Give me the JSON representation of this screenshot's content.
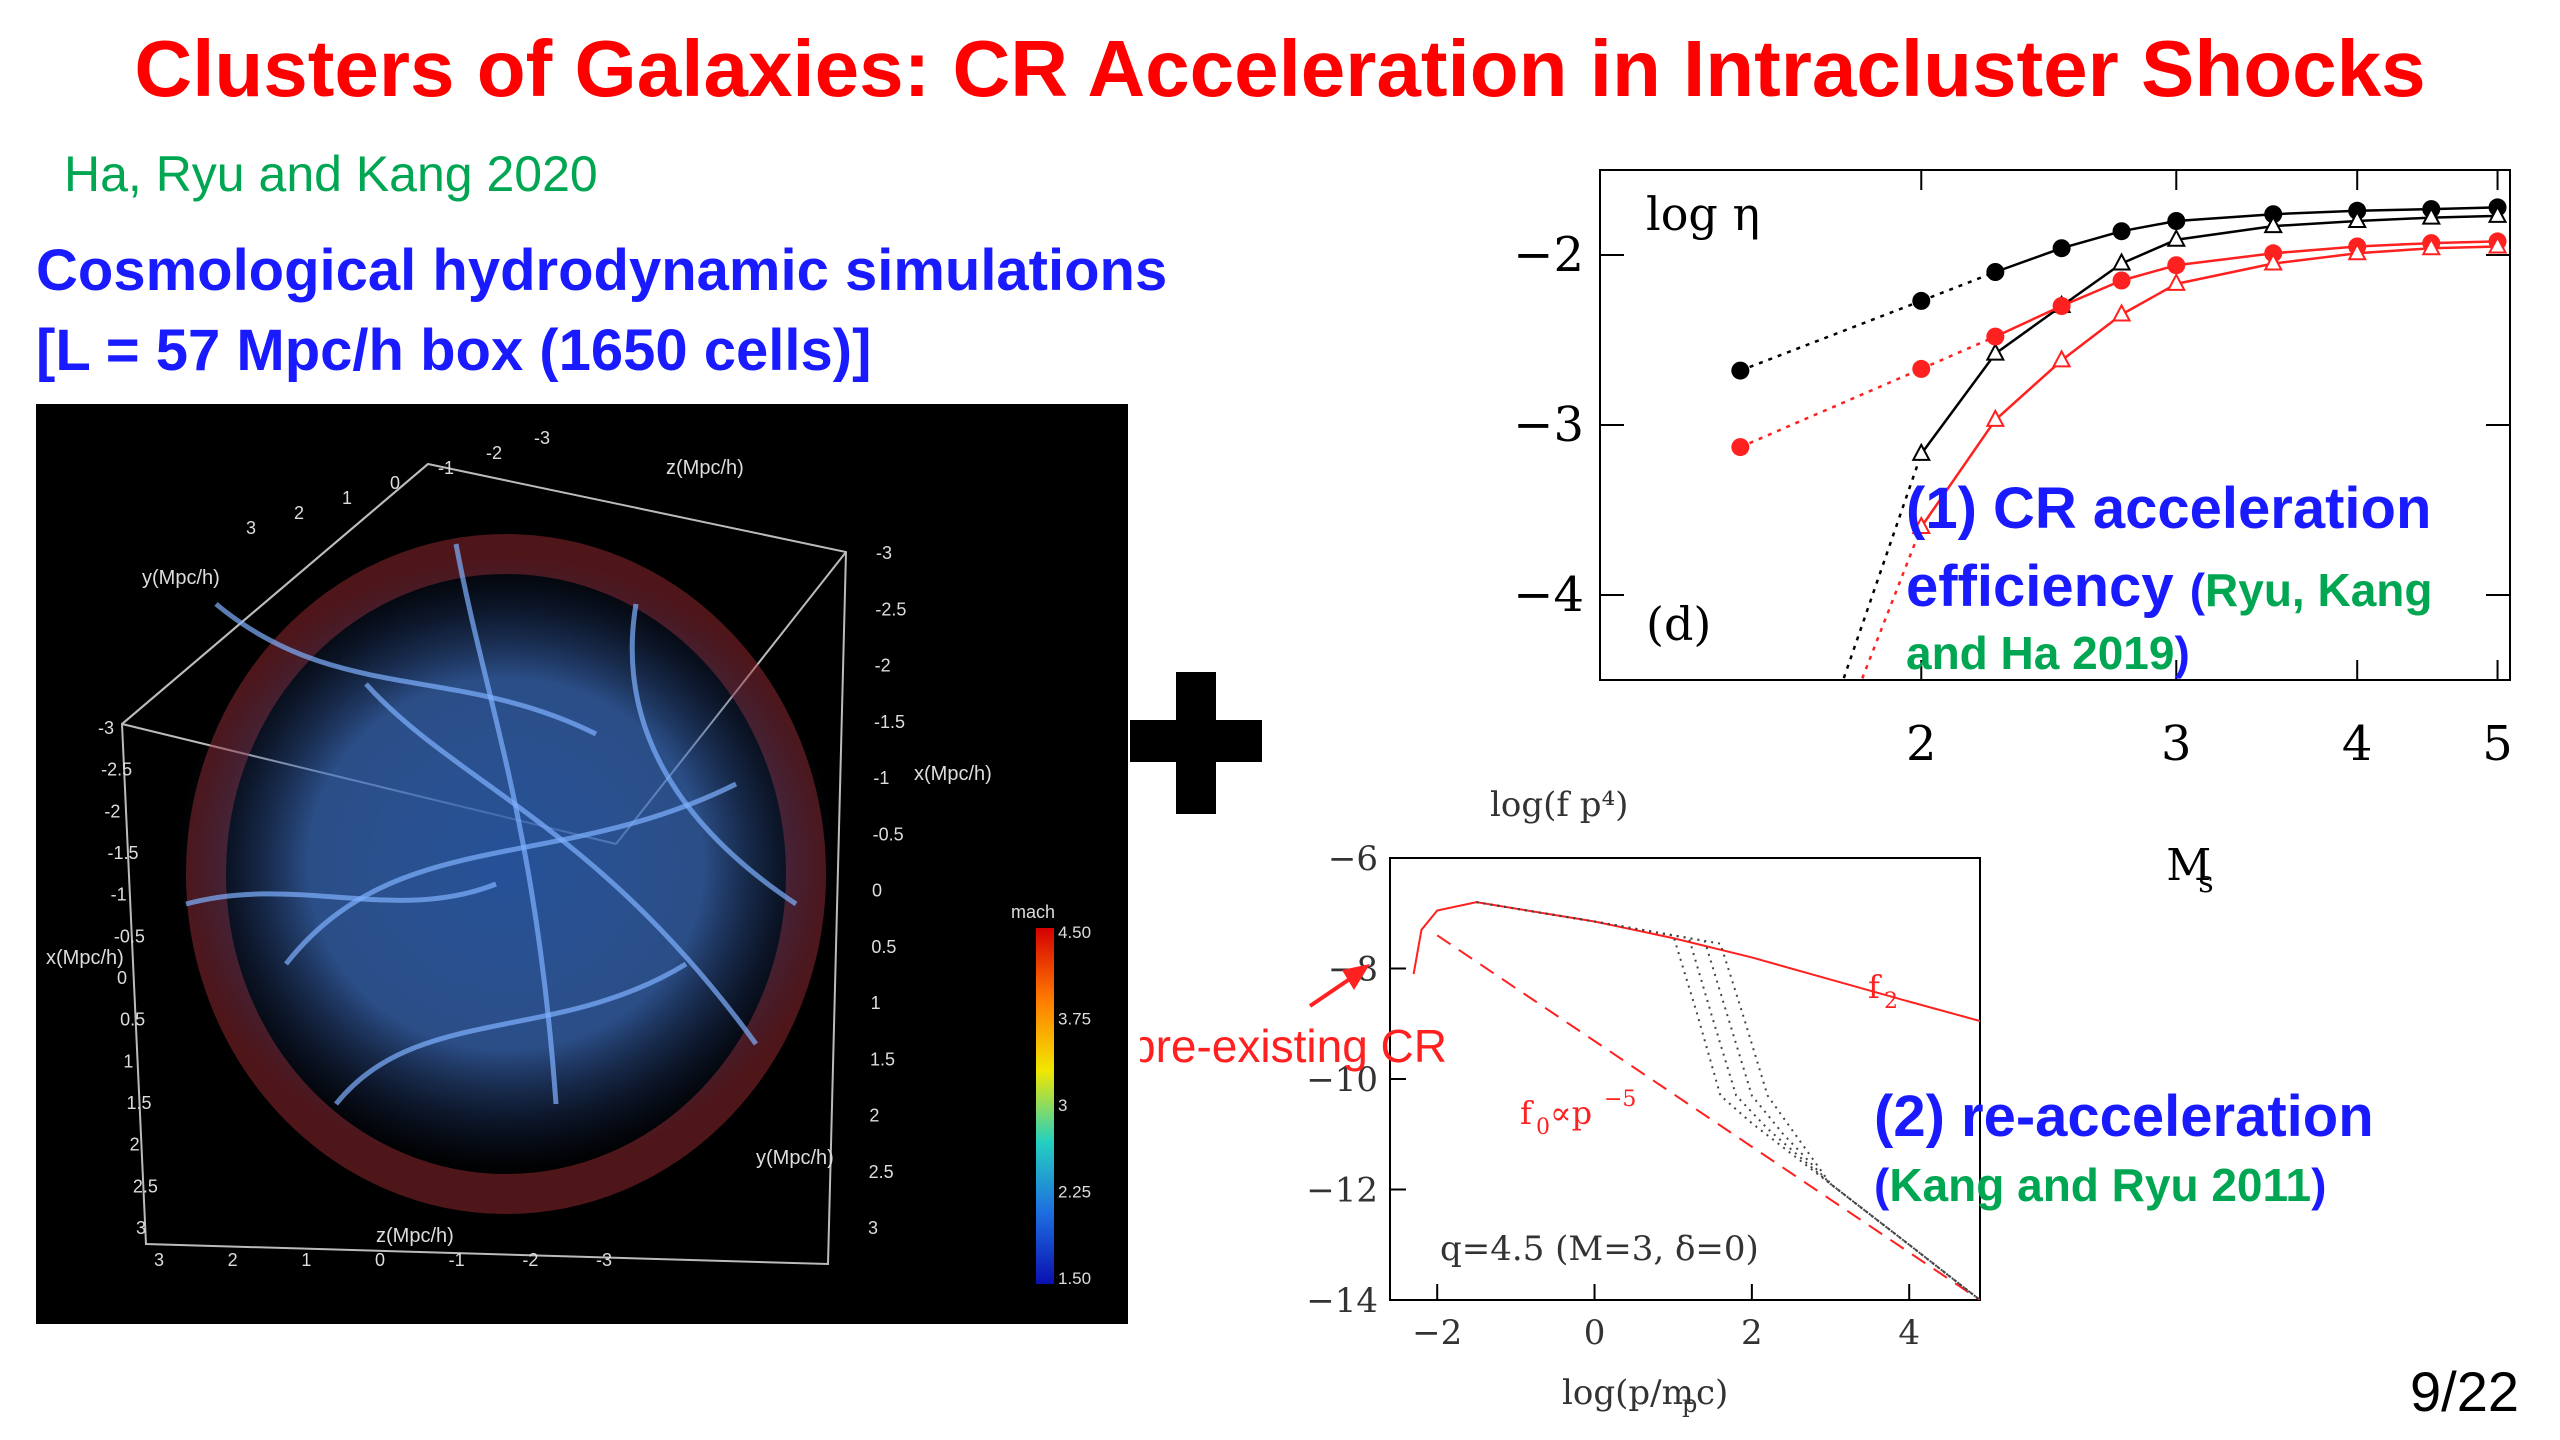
{
  "slide": {
    "title": "Clusters of Galaxies: CR Acceleration in Intracluster Shocks",
    "reference": "Ha, Ryu and Kang 2020",
    "sim_line1": "Cosmological hydrodynamic simulations",
    "sim_line2": "[L = 57 Mpc/h box (1650 cells)]",
    "page_number": "9/22"
  },
  "colors": {
    "title": "#ff0000",
    "reference": "#00a651",
    "heading": "#1a1aff",
    "red_series": "#ff2020"
  },
  "simulation_image": {
    "axis_labels": {
      "x": "x(Mpc/h)",
      "y": "y(Mpc/h)",
      "z": "z(Mpc/h)"
    },
    "colorbar": {
      "title": "mach",
      "ticks": [
        "4.50",
        "3.75",
        "3",
        "2.25",
        "1.50"
      ]
    },
    "left_ticks": [
      "-3",
      "-2.5",
      "-2",
      "-1.5",
      "-1",
      "-0.5",
      "0",
      "0.5",
      "1",
      "1.5",
      "2",
      "2.5",
      "3"
    ],
    "bottom_ticks": [
      "3",
      "2",
      "1",
      "0",
      "-1",
      "-2",
      "-3"
    ],
    "top_ticks": [
      "3",
      "2",
      "1",
      "0",
      "-1",
      "-2",
      "-3"
    ],
    "right_ticks": [
      "-3",
      "-2.5",
      "-2",
      "-1.5",
      "-1",
      "-0.5",
      "0",
      "0.5",
      "1",
      "1.5",
      "2",
      "2.5",
      "3"
    ],
    "yleft_ticks": [
      "3",
      "2",
      "1",
      "0",
      "-1",
      "-2",
      "-3"
    ],
    "bottom_right_ticks": [
      "3",
      "2",
      "1",
      "0",
      "-1",
      "-2",
      "-3"
    ]
  },
  "label1": {
    "line1": "(1) CR acceleration",
    "line2": "efficiency",
    "ref_open": "(",
    "ref_a": "Ryu, Kang",
    "ref_b": "and Ha 2019",
    "ref_close": ")"
  },
  "label2": {
    "line1": "(2) re-acceleration",
    "ref_open": "(",
    "ref": "Kang and Ryu 2011",
    "ref_close": ")"
  },
  "chart_data": [
    {
      "type": "line",
      "ylabel": "log η",
      "xlabel": "M",
      "xlabel_sub": "s",
      "panel_label": "(d)",
      "xscale": "log",
      "xlim": [
        1.2,
        5.1
      ],
      "ylim": [
        -4.5,
        -1.5
      ],
      "xticks": [
        2,
        3,
        4,
        5
      ],
      "yticks": [
        -2,
        -3,
        -4
      ],
      "ytick_labels": [
        "−2",
        "−3",
        "−4"
      ],
      "series": [
        {
          "color": "#000000",
          "marker": "circle",
          "x": [
            1.5,
            2.0,
            2.25,
            2.5,
            2.75,
            3.0,
            3.5,
            4.0,
            4.5,
            5.0
          ],
          "y": [
            -2.68,
            -2.27,
            -2.1,
            -1.96,
            -1.86,
            -1.8,
            -1.76,
            -1.74,
            -1.73,
            -1.72
          ],
          "dotted_until": 2.25
        },
        {
          "color": "#000000",
          "marker": "triangle",
          "x": [
            1.75,
            2.0,
            2.25,
            2.5,
            2.75,
            3.0,
            3.5,
            4.0,
            4.5,
            5.0
          ],
          "y": [
            -4.6,
            -3.17,
            -2.58,
            -2.3,
            -2.05,
            -1.91,
            -1.83,
            -1.8,
            -1.78,
            -1.77
          ],
          "dotted_until": 2.0
        },
        {
          "color": "#ff2020",
          "marker": "circle",
          "x": [
            1.5,
            2.0,
            2.25,
            2.5,
            2.75,
            3.0,
            3.5,
            4.0,
            4.5,
            5.0
          ],
          "y": [
            -3.13,
            -2.67,
            -2.48,
            -2.3,
            -2.15,
            -2.06,
            -1.99,
            -1.95,
            -1.93,
            -1.92
          ],
          "dotted_until": 2.25
        },
        {
          "color": "#ff2020",
          "marker": "triangle",
          "x": [
            1.8,
            2.0,
            2.25,
            2.5,
            2.75,
            3.0,
            3.5,
            4.0,
            4.5,
            5.0
          ],
          "y": [
            -4.6,
            -3.6,
            -2.97,
            -2.62,
            -2.35,
            -2.17,
            -2.05,
            -1.99,
            -1.96,
            -1.95
          ],
          "dotted_until": 2.0
        }
      ]
    },
    {
      "type": "line",
      "ylabel": "log(f p⁴)",
      "xlabel": "log(p/m",
      "xlabel_sub": "p",
      "xlabel_end": "c)",
      "xlim": [
        -2.6,
        4.9
      ],
      "ylim": [
        -14,
        -6
      ],
      "xticks": [
        -2,
        0,
        2,
        4
      ],
      "xtick_labels": [
        "−2",
        "0",
        "2",
        "4"
      ],
      "yticks": [
        -6,
        -8,
        -10,
        -12,
        -14
      ],
      "ytick_labels": [
        "−6",
        "−8",
        "−10",
        "−12",
        "−14"
      ],
      "annotation_q": "q=4.5  (M=3,  δ=0)",
      "annotation_f2": "f",
      "annotation_f2_sub": "2",
      "annotation_f0": "f",
      "annotation_f0_sub": "0",
      "annotation_f0_rest": "∝p",
      "annotation_f0_sup": "−5",
      "annotation_preexisting": "pre-existing CR",
      "series": [
        {
          "color": "#ff2020",
          "style": "solid",
          "x": [
            -2.3,
            -2.2,
            -2.0,
            -1.5,
            0,
            1,
            2,
            3,
            4,
            4.9
          ],
          "y": [
            -8.1,
            -7.3,
            -6.95,
            -6.8,
            -7.15,
            -7.45,
            -7.8,
            -8.2,
            -8.6,
            -8.95
          ]
        },
        {
          "color": "#ff2020",
          "style": "dashed",
          "x": [
            -2.0,
            4.9
          ],
          "y": [
            -7.4,
            -14.0
          ]
        },
        {
          "color": "#444444",
          "style": "dotted",
          "x": [
            -1.5,
            0,
            1.0,
            1.3,
            1.6,
            2.0,
            3,
            4,
            4.9
          ],
          "y": [
            -6.8,
            -7.15,
            -7.4,
            -8.8,
            -10.3,
            -10.8,
            -11.9,
            -13.0,
            -14.0
          ]
        },
        {
          "color": "#444444",
          "style": "dotted",
          "x": [
            -1.5,
            0,
            1.2,
            1.5,
            1.8,
            2.2,
            3,
            4,
            4.9
          ],
          "y": [
            -6.8,
            -7.15,
            -7.45,
            -8.9,
            -10.3,
            -10.9,
            -11.9,
            -13.0,
            -14.0
          ]
        },
        {
          "color": "#444444",
          "style": "dotted",
          "x": [
            -1.5,
            0,
            1.4,
            1.7,
            2.0,
            2.4,
            3,
            4,
            4.9
          ],
          "y": [
            -6.8,
            -7.15,
            -7.5,
            -8.9,
            -10.3,
            -11.0,
            -11.9,
            -13.0,
            -14.0
          ]
        },
        {
          "color": "#444444",
          "style": "dotted",
          "x": [
            -1.5,
            0,
            1.6,
            1.9,
            2.2,
            2.6,
            3,
            4,
            4.9
          ],
          "y": [
            -6.8,
            -7.15,
            -7.55,
            -8.9,
            -10.3,
            -11.1,
            -11.9,
            -13.0,
            -14.0
          ]
        }
      ]
    }
  ]
}
